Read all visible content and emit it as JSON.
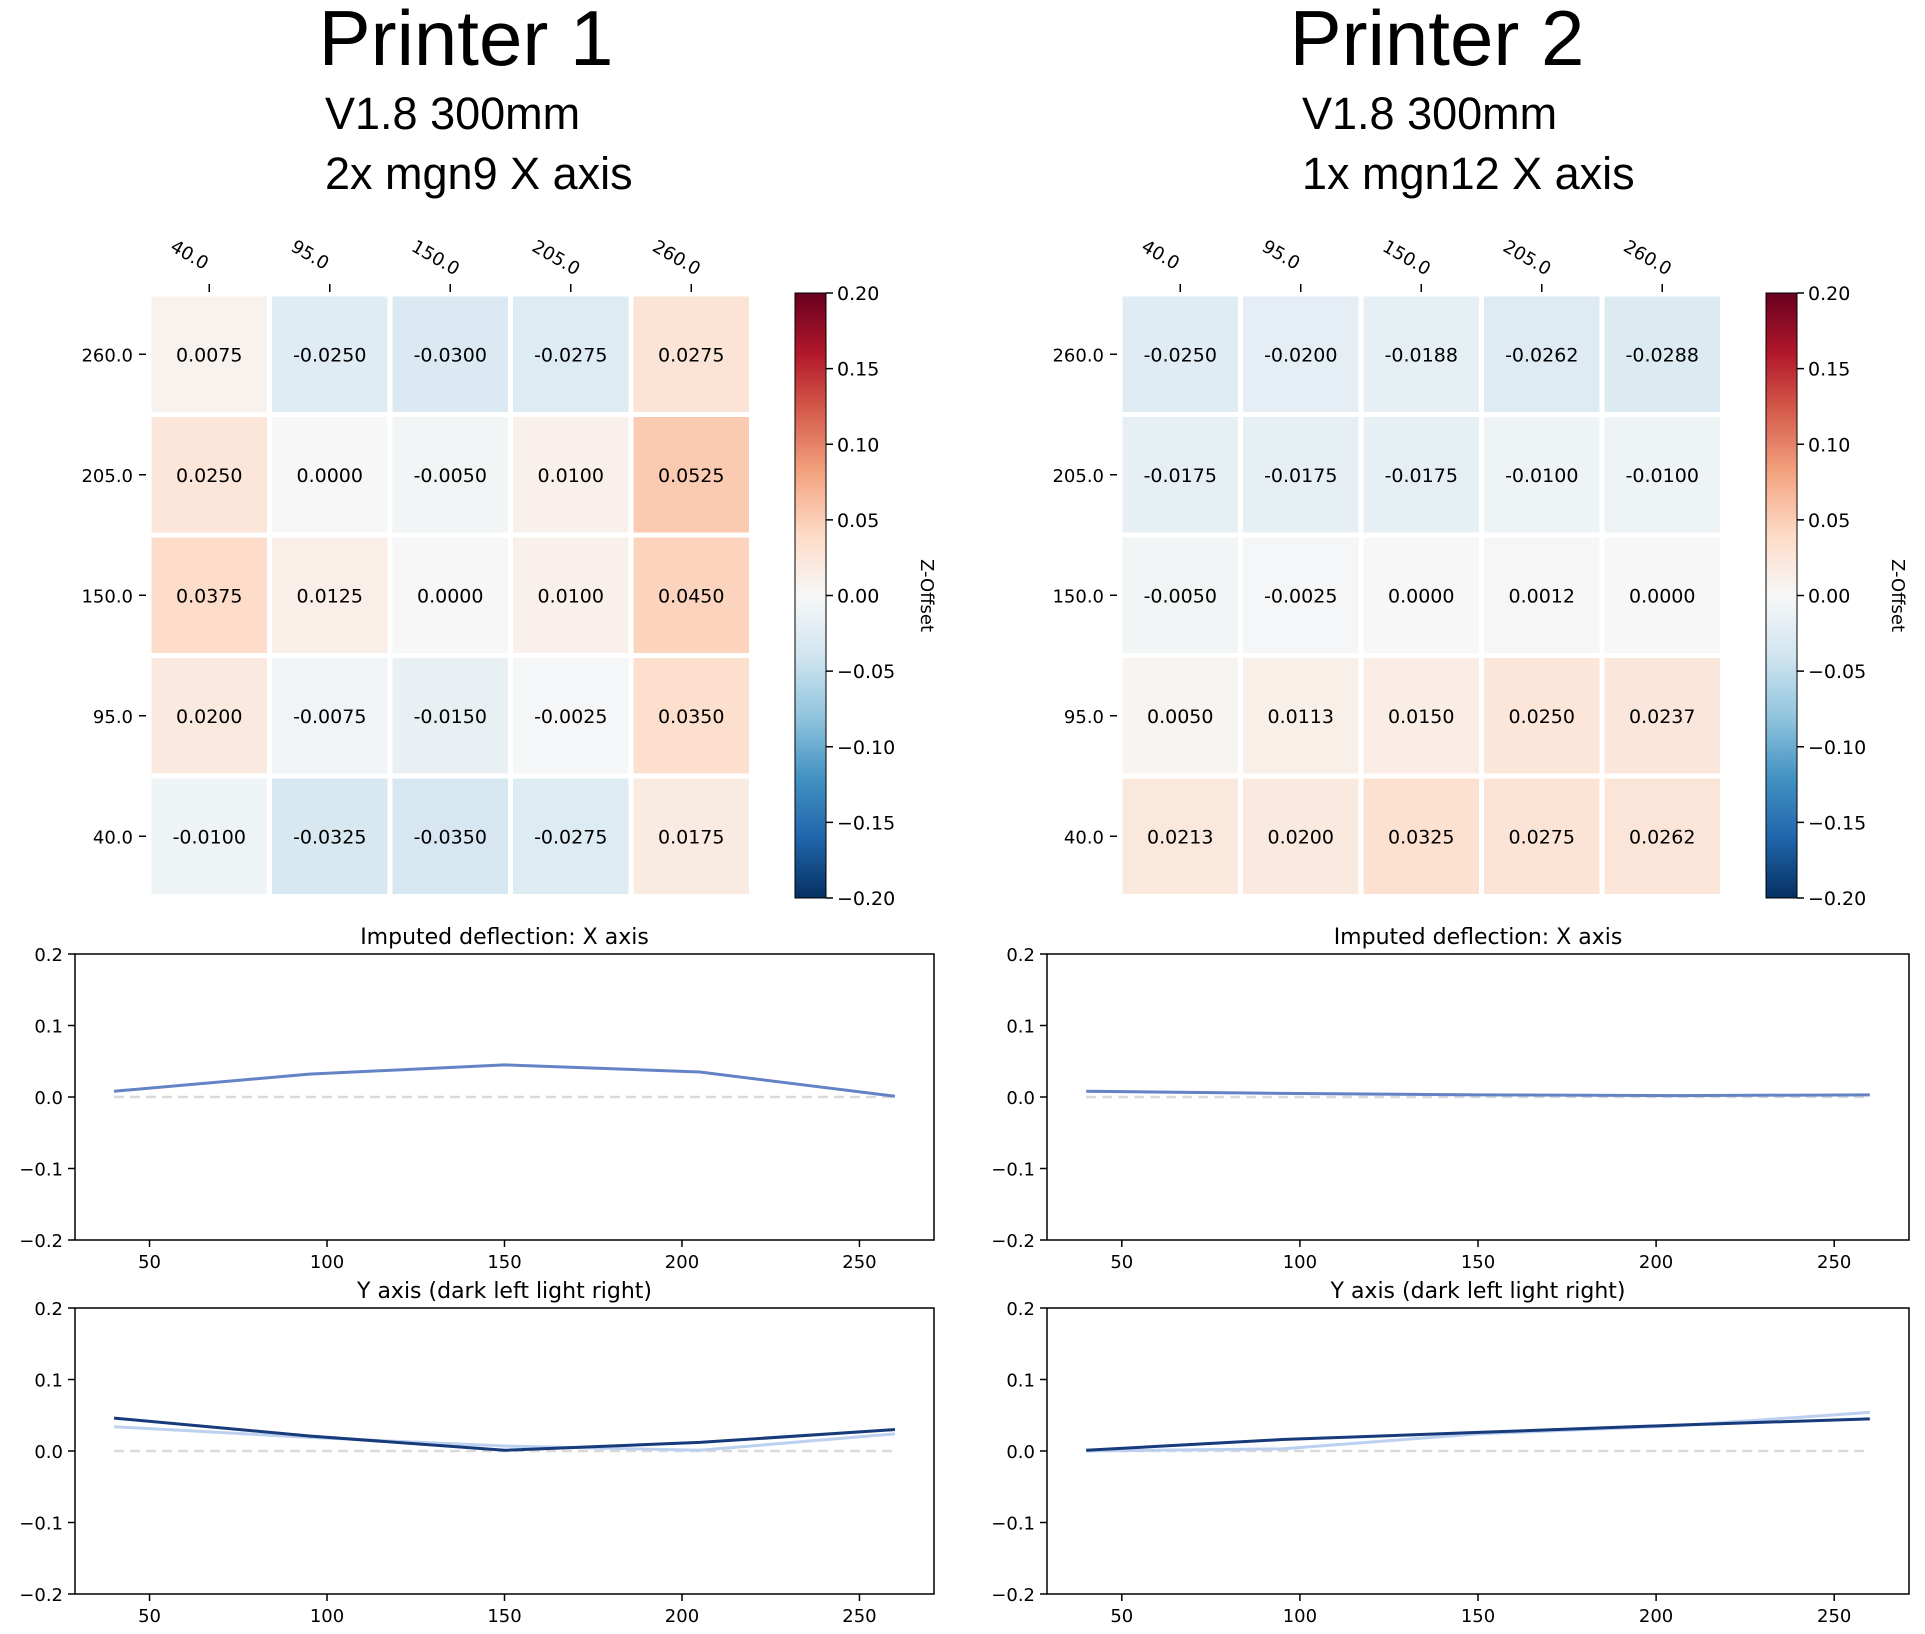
{
  "colors": {
    "x_line": "#6483c4",
    "y_dark": "#173a7a",
    "y_light": "#bcd0f0",
    "zero_line": "#d9d9d9",
    "colormap": "RdBu_r"
  },
  "panels": [
    {
      "title": "Printer 1",
      "subtitle1": "V1.8 300mm",
      "subtitle2": "2x mgn9 X axis",
      "chart_data": [
        {
          "type": "heatmap",
          "x_ticks": [
            "40.0",
            "95.0",
            "150.0",
            "205.0",
            "260.0"
          ],
          "y_ticks": [
            "260.0",
            "205.0",
            "150.0",
            "95.0",
            "40.0"
          ],
          "values": [
            [
              "0.0075",
              "-0.0250",
              "-0.0300",
              "-0.0275",
              "0.0275"
            ],
            [
              "0.0250",
              "0.0000",
              "-0.0050",
              "0.0100",
              "0.0525"
            ],
            [
              "0.0375",
              "0.0125",
              "0.0000",
              "0.0100",
              "0.0450"
            ],
            [
              "0.0200",
              "-0.0075",
              "-0.0150",
              "-0.0025",
              "0.0350"
            ],
            [
              "-0.0100",
              "-0.0325",
              "-0.0350",
              "-0.0275",
              "0.0175"
            ]
          ],
          "colorbar": {
            "label": "Z-Offset",
            "range": [
              -0.2,
              0.2
            ],
            "ticks": [
              "0.20",
              "0.15",
              "0.10",
              "0.05",
              "0.00",
              "−0.05",
              "−0.10",
              "−0.15",
              "−0.20"
            ]
          }
        },
        {
          "type": "line",
          "title": "Imputed deflection: X axis",
          "ylim": [
            -0.2,
            0.2
          ],
          "xlim": [
            29,
            271
          ],
          "y_ticks": [
            "0.2",
            "0.1",
            "0.0",
            "−0.1",
            "−0.2"
          ],
          "x_ticks": [
            "50",
            "100",
            "150",
            "200",
            "250"
          ],
          "x": [
            40,
            95,
            150,
            205,
            260
          ],
          "series": [
            {
              "values": [
                0.008,
                0.032,
                0.045,
                0.035,
                0.001
              ]
            }
          ]
        },
        {
          "type": "line",
          "title": "Y axis (dark left light right)",
          "ylim": [
            -0.2,
            0.2
          ],
          "xlim": [
            29,
            271
          ],
          "y_ticks": [
            "0.2",
            "0.1",
            "0.0",
            "−0.1",
            "−0.2"
          ],
          "x_ticks": [
            "50",
            "100",
            "150",
            "200",
            "250"
          ],
          "x": [
            40,
            95,
            150,
            205,
            260
          ],
          "series": [
            {
              "values": [
                0.034,
                0.019,
                0.007,
                0.001,
                0.024
              ]
            },
            {
              "values": [
                0.046,
                0.021,
                0.001,
                0.012,
                0.03
              ]
            }
          ]
        }
      ]
    },
    {
      "title": "Printer 2",
      "subtitle1": "V1.8 300mm",
      "subtitle2": "1x mgn12 X axis",
      "chart_data": [
        {
          "type": "heatmap",
          "x_ticks": [
            "40.0",
            "95.0",
            "150.0",
            "205.0",
            "260.0"
          ],
          "y_ticks": [
            "260.0",
            "205.0",
            "150.0",
            "95.0",
            "40.0"
          ],
          "values": [
            [
              "-0.0250",
              "-0.0200",
              "-0.0188",
              "-0.0262",
              "-0.0288"
            ],
            [
              "-0.0175",
              "-0.0175",
              "-0.0175",
              "-0.0100",
              "-0.0100"
            ],
            [
              "-0.0050",
              "-0.0025",
              "0.0000",
              "0.0012",
              "0.0000"
            ],
            [
              "0.0050",
              "0.0113",
              "0.0150",
              "0.0250",
              "0.0237"
            ],
            [
              "0.0213",
              "0.0200",
              "0.0325",
              "0.0275",
              "0.0262"
            ]
          ],
          "colorbar": {
            "label": "Z-Offset",
            "range": [
              -0.2,
              0.2
            ],
            "ticks": [
              "0.20",
              "0.15",
              "0.10",
              "0.05",
              "0.00",
              "−0.05",
              "−0.10",
              "−0.15",
              "−0.20"
            ]
          }
        },
        {
          "type": "line",
          "title": "Imputed deflection: X axis",
          "ylim": [
            -0.2,
            0.2
          ],
          "xlim": [
            29,
            271
          ],
          "y_ticks": [
            "0.2",
            "0.1",
            "0.0",
            "−0.1",
            "−0.2"
          ],
          "x_ticks": [
            "50",
            "100",
            "150",
            "200",
            "250"
          ],
          "x": [
            40,
            95,
            150,
            205,
            260
          ],
          "series": [
            {
              "values": [
                0.008,
                0.005,
                0.003,
                0.002,
                0.003
              ]
            }
          ]
        },
        {
          "type": "line",
          "title": "Y axis (dark left light right)",
          "ylim": [
            -0.2,
            0.2
          ],
          "xlim": [
            29,
            271
          ],
          "y_ticks": [
            "0.2",
            "0.1",
            "0.0",
            "−0.1",
            "−0.2"
          ],
          "x_ticks": [
            "50",
            "100",
            "150",
            "200",
            "250"
          ],
          "x": [
            40,
            95,
            150,
            205,
            260
          ],
          "series": [
            {
              "values": [
                0.0,
                0.003,
                0.024,
                0.035,
                0.054
              ]
            },
            {
              "values": [
                0.001,
                0.016,
                0.026,
                0.036,
                0.045
              ]
            }
          ]
        }
      ]
    }
  ]
}
